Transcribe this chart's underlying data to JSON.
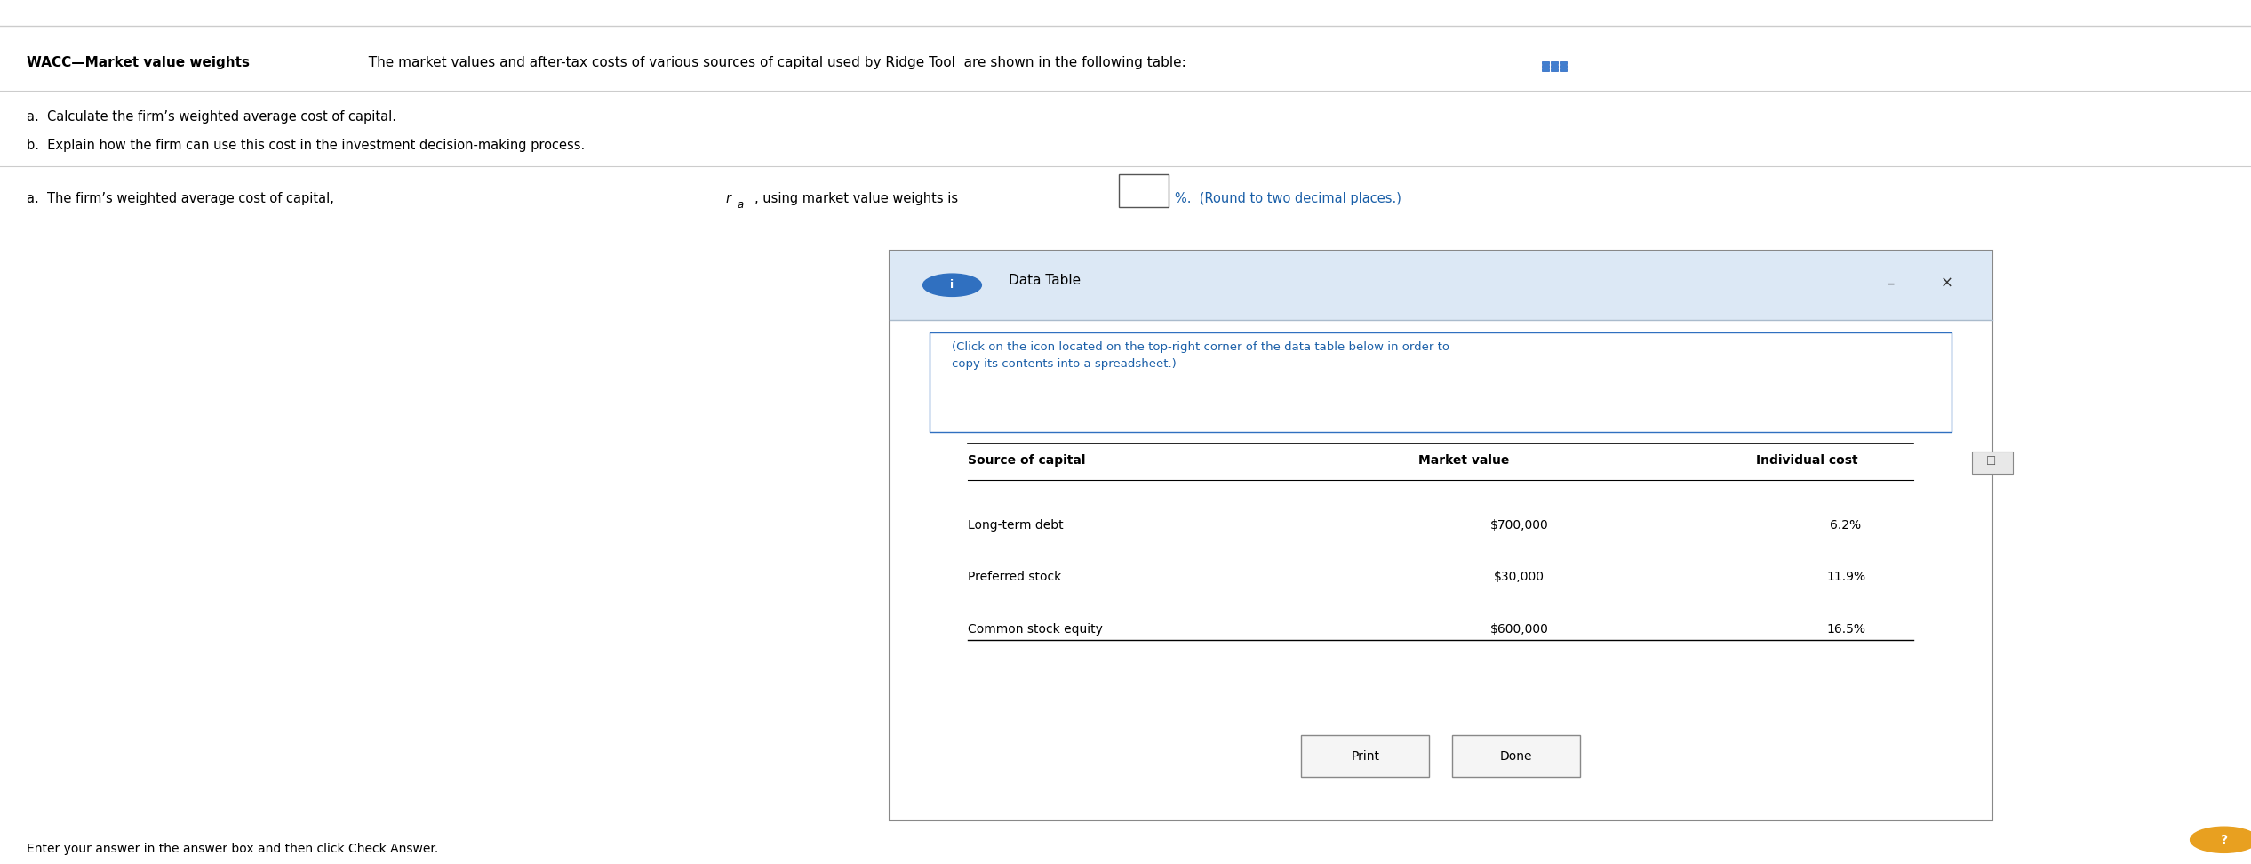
{
  "title_bold": "WACC—Market value weights",
  "title_normal": "  The market values and after-tax costs of various sources of capital used by Ridge Tool  are shown in the following table:",
  "bg_color": "#ffffff",
  "line1_a": "a.  Calculate the firm’s weighted average cost of capital.",
  "line1_b": "b.  Explain how the firm can use this cost in the investment decision-making process.",
  "answer_line": "a.  The firm’s weighted average cost of capital, ",
  "answer_ra": "r",
  "answer_ra_sub": "a",
  "answer_line2": ", using market value weights is",
  "answer_line3": "%.  (Round to two decimal places.)",
  "bottom_text": "Enter your answer in the answer box and then click Check Answer.",
  "dialog_title": "Data Table",
  "dialog_instruction": "(Click on the icon located on the top-right corner of the data table below in order to\ncopy its contents into a spreadsheet.)",
  "table_headers": [
    "Source of capital",
    "Market value",
    "Individual cost"
  ],
  "table_rows": [
    [
      "Long-term debt",
      "$700,000",
      "6.2%"
    ],
    [
      "Preferred stock",
      "$30,000",
      "11.9%"
    ],
    [
      "Common stock equity",
      "$600,000",
      "16.5%"
    ]
  ],
  "print_btn": "Print",
  "done_btn": "Done",
  "dialog_bg": "#f0f4f8",
  "dialog_border": "#999999",
  "instruction_color": "#1a5fa8",
  "header_top_line_color": "#000000",
  "table_bottom_line_color": "#000000",
  "separator_line_color": "#cccccc"
}
